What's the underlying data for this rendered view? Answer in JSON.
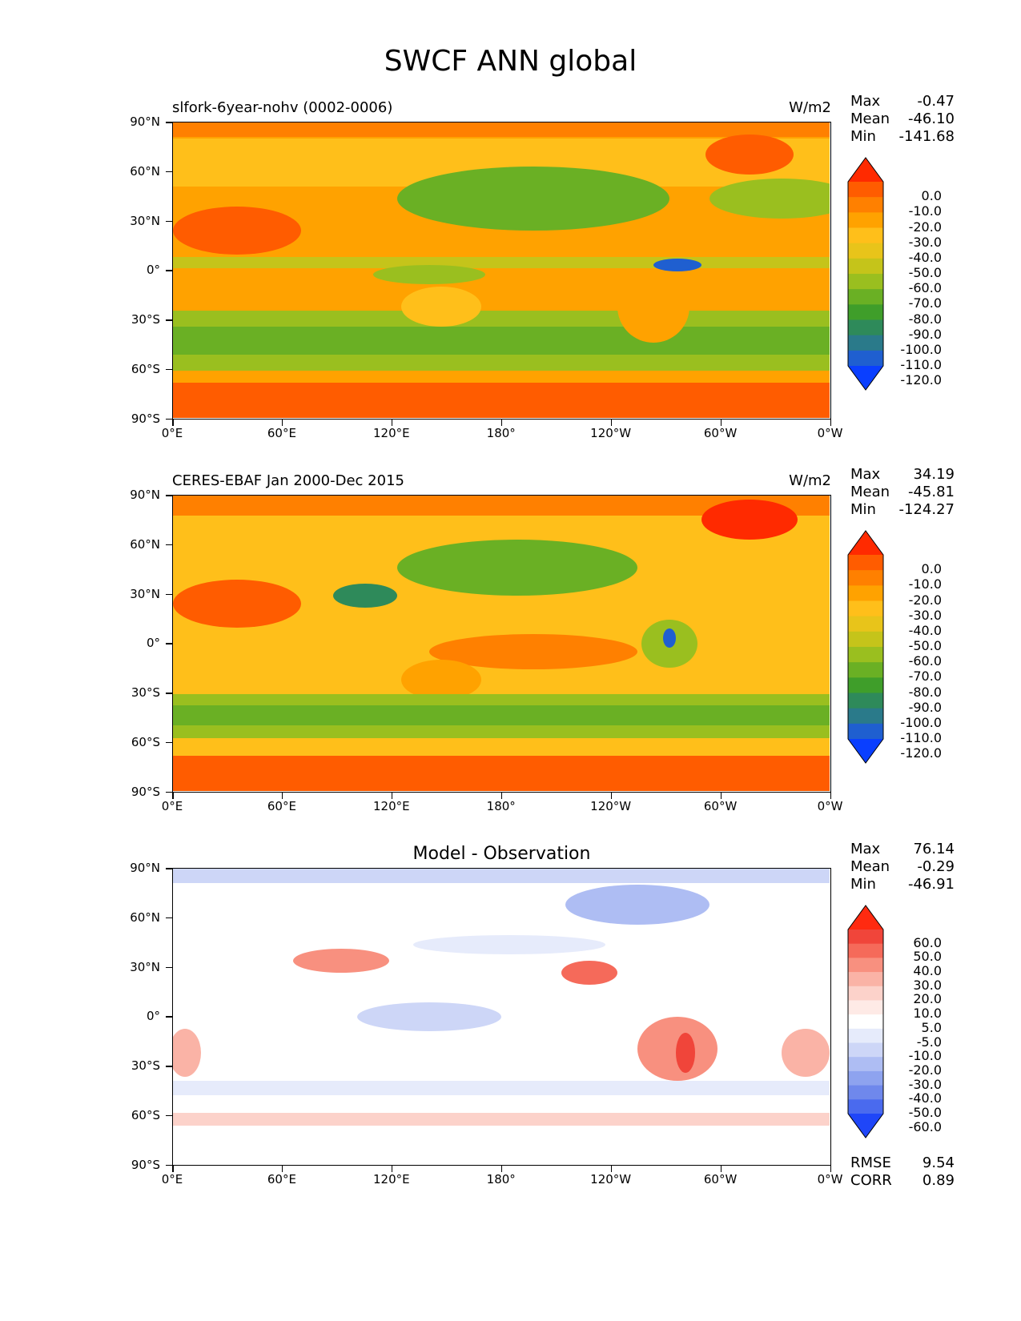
{
  "figure": {
    "title": "SWCF ANN global"
  },
  "axes": {
    "yticks": [
      "90°N",
      "60°N",
      "30°N",
      "0°",
      "30°S",
      "60°S",
      "90°S"
    ],
    "xticks": [
      "0°E",
      "60°E",
      "120°E",
      "180°",
      "120°W",
      "60°W",
      "0°W"
    ]
  },
  "panels": [
    {
      "title": "slfork-6year-nohv (0002-0006)",
      "units": "W/m2",
      "stats": {
        "max_label": "Max",
        "max": "-0.47",
        "mean_label": "Mean",
        "mean": "-46.10",
        "min_label": "Min",
        "min": "-141.68"
      },
      "colorbar": {
        "labels": [
          "0.0",
          "-10.0",
          "-20.0",
          "-30.0",
          "-40.0",
          "-50.0",
          "-60.0",
          "-70.0",
          "-80.0",
          "-90.0",
          "-100.0",
          "-110.0",
          "-120.0"
        ],
        "colors": [
          "#ff2a00",
          "#ff5c00",
          "#ff8000",
          "#ffa200",
          "#ffbf1a",
          "#e8c41a",
          "#c5c41a",
          "#9abf1f",
          "#6ab024",
          "#3f9e2a",
          "#2e8a5a",
          "#2a7a8a",
          "#1f5fd0",
          "#0a3fff"
        ]
      }
    },
    {
      "title": "CERES-EBAF Jan 2000-Dec 2015",
      "units": "W/m2",
      "stats": {
        "max_label": "Max",
        "max": "34.19",
        "mean_label": "Mean",
        "mean": "-45.81",
        "min_label": "Min",
        "min": "-124.27"
      },
      "colorbar": {
        "labels": [
          "0.0",
          "-10.0",
          "-20.0",
          "-30.0",
          "-40.0",
          "-50.0",
          "-60.0",
          "-70.0",
          "-80.0",
          "-90.0",
          "-100.0",
          "-110.0",
          "-120.0"
        ],
        "colors": [
          "#ff2a00",
          "#ff5c00",
          "#ff8000",
          "#ffa200",
          "#ffbf1a",
          "#e8c41a",
          "#c5c41a",
          "#9abf1f",
          "#6ab024",
          "#3f9e2a",
          "#2e8a5a",
          "#2a7a8a",
          "#1f5fd0",
          "#0a3fff"
        ]
      }
    },
    {
      "title": "Model - Observation",
      "units": "",
      "stats": {
        "max_label": "Max",
        "max": "76.14",
        "mean_label": "Mean",
        "mean": "-0.29",
        "min_label": "Min",
        "min": "-46.91"
      },
      "colorbar": {
        "labels": [
          "60.0",
          "50.0",
          "40.0",
          "30.0",
          "20.0",
          "10.0",
          "5.0",
          "-5.0",
          "-10.0",
          "-20.0",
          "-30.0",
          "-40.0",
          "-50.0",
          "-60.0"
        ],
        "colors": [
          "#ff2a10",
          "#f0453a",
          "#f56a5a",
          "#f8907f",
          "#fab3a6",
          "#fcd2ca",
          "#feeae6",
          "#ffffff",
          "#e6ebfb",
          "#cdd6f7",
          "#aebdf3",
          "#8ea3ef",
          "#6f88ec",
          "#4a6aee",
          "#1f46f8"
        ]
      },
      "rmse_label": "RMSE",
      "rmse": "9.54",
      "corr_label": "CORR",
      "corr": "0.89"
    }
  ],
  "chart_data": [
    {
      "type": "heatmap",
      "title": "slfork-6year-nohv (0002-0006)",
      "units": "W/m2",
      "x": [
        "0°E",
        "60°E",
        "120°E",
        "180°",
        "120°W",
        "60°W",
        "0°W"
      ],
      "y": [
        "90°N",
        "60°N",
        "30°N",
        "0°",
        "30°S",
        "60°S",
        "90°S"
      ],
      "xlim": [
        0,
        360
      ],
      "ylim": [
        -90,
        90
      ],
      "max": -0.47,
      "mean": -46.1,
      "min": -141.68,
      "levels": [
        0,
        -10,
        -20,
        -30,
        -40,
        -50,
        -60,
        -70,
        -80,
        -90,
        -100,
        -110,
        -120
      ]
    },
    {
      "type": "heatmap",
      "title": "CERES-EBAF Jan 2000-Dec 2015",
      "units": "W/m2",
      "x": [
        "0°E",
        "60°E",
        "120°E",
        "180°",
        "120°W",
        "60°W",
        "0°W"
      ],
      "y": [
        "90°N",
        "60°N",
        "30°N",
        "0°",
        "30°S",
        "60°S",
        "90°S"
      ],
      "xlim": [
        0,
        360
      ],
      "ylim": [
        -90,
        90
      ],
      "max": 34.19,
      "mean": -45.81,
      "min": -124.27,
      "levels": [
        0,
        -10,
        -20,
        -30,
        -40,
        -50,
        -60,
        -70,
        -80,
        -90,
        -100,
        -110,
        -120
      ]
    },
    {
      "type": "heatmap",
      "title": "Model - Observation",
      "x": [
        "0°E",
        "60°E",
        "120°E",
        "180°",
        "120°W",
        "60°W",
        "0°W"
      ],
      "y": [
        "90°N",
        "60°N",
        "30°N",
        "0°",
        "30°S",
        "60°S",
        "90°S"
      ],
      "xlim": [
        0,
        360
      ],
      "ylim": [
        -90,
        90
      ],
      "max": 76.14,
      "mean": -0.29,
      "min": -46.91,
      "rmse": 9.54,
      "corr": 0.89,
      "levels": [
        60,
        50,
        40,
        30,
        20,
        10,
        5,
        -5,
        -10,
        -20,
        -30,
        -40,
        -50,
        -60
      ]
    }
  ]
}
